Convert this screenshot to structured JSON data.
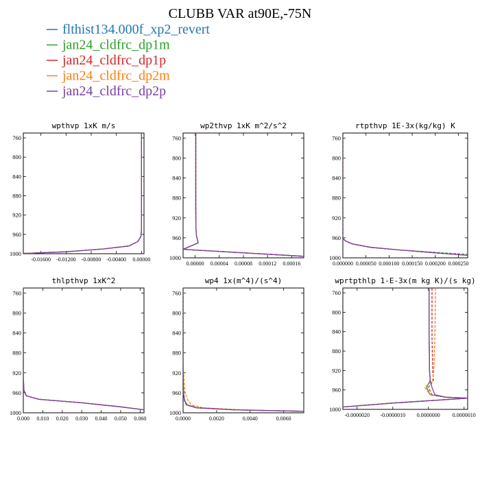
{
  "figure": {
    "title": "CLUBB VAR at90E,-75N"
  },
  "legend": [
    {
      "label": "flthist134.000f_xp2_revert",
      "color": "#1f77b4",
      "dash": "solid"
    },
    {
      "label": "jan24_cldfrc_dp1m",
      "color": "#2ca02c",
      "dash": "dash"
    },
    {
      "label": "jan24_cldfrc_dp1p",
      "color": "#d62728",
      "dash": "dash"
    },
    {
      "label": "jan24_cldfrc_dp2m",
      "color": "#ff7f0e",
      "dash": "dash"
    },
    {
      "label": "jan24_cldfrc_dp2p",
      "color": "#7b3fa0",
      "dash": "solid"
    }
  ],
  "chart_data": [
    {
      "type": "line",
      "title": "wpthvp  1xK m/s",
      "xlim": [
        -0.0188,
        0.0004
      ],
      "ylim": [
        1000,
        750
      ],
      "xticks": [
        -0.016,
        -0.012,
        -0.008,
        -0.004,
        0.0
      ],
      "xtick_labels": [
        "-0.01600",
        "-0.01200",
        "-0.00800",
        "-0.00400",
        "0.00000"
      ],
      "yticks": [
        760,
        800,
        840,
        880,
        920,
        960,
        1000
      ],
      "series": [
        {
          "name": "flthist134.000f_xp2_revert",
          "x": [
            0.0,
            0.0,
            0.0,
            0.0,
            -0.0001,
            -0.0006,
            -0.002,
            -0.006,
            -0.012,
            -0.0188
          ],
          "y": [
            750,
            850,
            900,
            950,
            965,
            975,
            984,
            990,
            996,
            999.5
          ]
        },
        {
          "name": "jan24_cldfrc_dp1m",
          "x": [
            0.0,
            0.0,
            0.0,
            0.0,
            -0.0001,
            -0.0006,
            -0.002,
            -0.006,
            -0.012,
            -0.0188
          ],
          "y": [
            750,
            850,
            900,
            950,
            965,
            975,
            984,
            990,
            996,
            999.5
          ]
        },
        {
          "name": "jan24_cldfrc_dp1p",
          "x": [
            0.0,
            0.0,
            0.0,
            0.0,
            -0.0001,
            -0.0006,
            -0.002,
            -0.006,
            -0.012,
            -0.0188
          ],
          "y": [
            750,
            850,
            900,
            950,
            965,
            975,
            984,
            990,
            996,
            999.5
          ]
        },
        {
          "name": "jan24_cldfrc_dp2m",
          "x": [
            0.0,
            0.0,
            0.0,
            0.0,
            -0.0001,
            -0.0006,
            -0.002,
            -0.006,
            -0.012,
            -0.0188
          ],
          "y": [
            750,
            850,
            900,
            950,
            965,
            975,
            984,
            990,
            996,
            999.5
          ]
        },
        {
          "name": "jan24_cldfrc_dp2p",
          "x": [
            0.0,
            0.0,
            0.0,
            0.0,
            -0.0001,
            -0.0006,
            -0.002,
            -0.006,
            -0.012,
            -0.0188
          ],
          "y": [
            750,
            850,
            900,
            950,
            965,
            975,
            984,
            990,
            996,
            999.5
          ]
        }
      ]
    },
    {
      "type": "line",
      "title": "wp2thvp   1xK m^2/s^2",
      "xlim": [
        -2e-05,
        0.00018
      ],
      "ylim": [
        1000,
        750
      ],
      "xticks": [
        0.0,
        4e-05,
        8e-05,
        0.00012,
        0.00016
      ],
      "xtick_labels": [
        "0.00000",
        "0.00004",
        "0.00008",
        "0.00012",
        "0.00016"
      ],
      "yticks": [
        760,
        800,
        840,
        880,
        920,
        960,
        1000
      ],
      "series": [
        {
          "name": "flthist134.000f_xp2_revert",
          "x": [
            1e-06,
            1e-06,
            1e-06,
            1.2e-06,
            2e-06,
            5e-06,
            -2e-05,
            8e-05,
            0.00018
          ],
          "y": [
            750,
            850,
            900,
            940,
            955,
            970,
            983,
            990,
            997
          ]
        },
        {
          "name": "jan24_cldfrc_dp1m",
          "x": [
            1e-06,
            1e-06,
            1e-06,
            1.2e-06,
            2e-06,
            5e-06,
            -2e-05,
            8e-05,
            0.00018
          ],
          "y": [
            750,
            850,
            900,
            940,
            955,
            970,
            983,
            990,
            997
          ]
        },
        {
          "name": "jan24_cldfrc_dp1p",
          "x": [
            1e-06,
            1e-06,
            1e-06,
            1.2e-06,
            2e-06,
            5e-06,
            -2e-05,
            8e-05,
            0.00018
          ],
          "y": [
            750,
            850,
            900,
            940,
            955,
            970,
            983,
            990,
            997
          ]
        },
        {
          "name": "jan24_cldfrc_dp2m",
          "x": [
            1e-06,
            1e-06,
            1e-06,
            1.2e-06,
            2e-06,
            5e-06,
            -2e-05,
            8e-05,
            0.00018
          ],
          "y": [
            750,
            850,
            900,
            940,
            955,
            970,
            983,
            990,
            997
          ]
        },
        {
          "name": "jan24_cldfrc_dp2p",
          "x": [
            1e-06,
            1e-06,
            1e-06,
            1.2e-06,
            2e-06,
            5e-06,
            -2e-05,
            8e-05,
            0.00018
          ],
          "y": [
            750,
            850,
            900,
            940,
            955,
            970,
            983,
            990,
            997
          ]
        }
      ]
    },
    {
      "type": "line",
      "title": "rtpthvp  1E-3x(kg/kg) K",
      "xlim": [
        0.0,
        0.00027
      ],
      "ylim": [
        1000,
        750
      ],
      "xticks": [
        0.0,
        5e-05,
        0.0001,
        0.00015,
        0.0002,
        0.00025
      ],
      "xtick_labels": [
        "0.000000",
        "0.000050",
        "0.000100",
        "0.000150",
        "0.000200",
        "0.000250"
      ],
      "yticks": [
        760,
        800,
        840,
        880,
        920,
        960,
        1000
      ],
      "series": [
        {
          "name": "flthist134.000f_xp2_revert",
          "x": [
            0.0,
            0.0,
            0.0,
            0.0,
            5e-06,
            2e-05,
            6e-05,
            0.00012,
            0.0002,
            0.00027
          ],
          "y": [
            750,
            850,
            900,
            960,
            966,
            972,
            979,
            984,
            990,
            995
          ]
        },
        {
          "name": "jan24_cldfrc_dp1m",
          "x": [
            0.0,
            0.0,
            0.0,
            0.0,
            5e-06,
            2e-05,
            6e-05,
            0.00012,
            0.0002,
            0.00027
          ],
          "y": [
            750,
            850,
            900,
            960,
            966,
            972,
            979,
            984,
            989,
            993
          ]
        },
        {
          "name": "jan24_cldfrc_dp1p",
          "x": [
            0.0,
            0.0,
            0.0,
            0.0,
            5e-06,
            2e-05,
            6e-05,
            0.00012,
            0.0002,
            0.00027
          ],
          "y": [
            750,
            850,
            900,
            960,
            966,
            972,
            979,
            984,
            990,
            995
          ]
        },
        {
          "name": "jan24_cldfrc_dp2m",
          "x": [
            0.0,
            0.0,
            0.0,
            0.0,
            5e-06,
            2e-05,
            6e-05,
            0.00012,
            0.0002,
            0.00027
          ],
          "y": [
            750,
            850,
            900,
            960,
            966,
            972,
            979,
            984,
            990,
            995
          ]
        },
        {
          "name": "jan24_cldfrc_dp2p",
          "x": [
            0.0,
            0.0,
            0.0,
            0.0,
            5e-06,
            2e-05,
            6e-05,
            0.00012,
            0.0002,
            0.00027
          ],
          "y": [
            750,
            850,
            900,
            960,
            966,
            972,
            979,
            984,
            990,
            995
          ]
        }
      ]
    },
    {
      "type": "line",
      "title": "thlpthvp   1xK^2",
      "xlim": [
        0.0,
        0.062
      ],
      "ylim": [
        1000,
        750
      ],
      "xticks": [
        0.0,
        0.01,
        0.02,
        0.03,
        0.04,
        0.05,
        0.06
      ],
      "xtick_labels": [
        "0.000",
        "0.010",
        "0.020",
        "0.030",
        "0.040",
        "0.050",
        "0.060"
      ],
      "yticks": [
        760,
        800,
        840,
        880,
        920,
        960,
        1000
      ],
      "series": [
        {
          "name": "flthist134.000f_xp2_revert",
          "x": [
            0.0,
            0.0,
            0.0,
            0.0003,
            0.0015,
            0.008,
            0.03,
            0.05,
            0.062
          ],
          "y": [
            750,
            850,
            930,
            955,
            966,
            973,
            980,
            988,
            994
          ]
        },
        {
          "name": "jan24_cldfrc_dp1m",
          "x": [
            0.0,
            0.0,
            0.0,
            0.0003,
            0.0015,
            0.008,
            0.03,
            0.05,
            0.062
          ],
          "y": [
            750,
            850,
            930,
            955,
            966,
            973,
            980,
            988,
            994
          ]
        },
        {
          "name": "jan24_cldfrc_dp1p",
          "x": [
            0.0,
            0.0,
            0.0,
            0.0003,
            0.0015,
            0.008,
            0.03,
            0.05,
            0.062
          ],
          "y": [
            750,
            850,
            930,
            955,
            966,
            973,
            980,
            988,
            994
          ]
        },
        {
          "name": "jan24_cldfrc_dp2m",
          "x": [
            0.0,
            0.0,
            0.0,
            0.0003,
            0.0015,
            0.008,
            0.03,
            0.05,
            0.062
          ],
          "y": [
            750,
            850,
            930,
            955,
            966,
            973,
            980,
            988,
            994
          ]
        },
        {
          "name": "jan24_cldfrc_dp2p",
          "x": [
            0.0,
            0.0,
            0.0,
            0.0003,
            0.0015,
            0.008,
            0.03,
            0.05,
            0.062
          ],
          "y": [
            750,
            850,
            930,
            955,
            966,
            973,
            980,
            988,
            994
          ]
        }
      ]
    },
    {
      "type": "line",
      "title": "wp4   1x(m^4)/(s^4)",
      "xlim": [
        0.0,
        0.0072
      ],
      "ylim": [
        1000,
        750
      ],
      "xticks": [
        0.0,
        0.002,
        0.004,
        0.006
      ],
      "xtick_labels": [
        "0.0000",
        "0.0020",
        "0.0040",
        "0.0060"
      ],
      "yticks": [
        760,
        800,
        840,
        880,
        920,
        960,
        1000
      ],
      "series": [
        {
          "name": "flthist134.000f_xp2_revert",
          "x": [
            0.0,
            0.0,
            2e-05,
            8e-05,
            0.0002,
            0.0008,
            0.003,
            0.0072
          ],
          "y": [
            750,
            900,
            960,
            975,
            984,
            990,
            994,
            997
          ]
        },
        {
          "name": "jan24_cldfrc_dp1m",
          "x": [
            0.0,
            0.0,
            3e-05,
            0.0001,
            0.00025,
            0.0009,
            0.003,
            0.0072
          ],
          "y": [
            750,
            900,
            960,
            975,
            984,
            990,
            994,
            997
          ]
        },
        {
          "name": "jan24_cldfrc_dp1p",
          "x": [
            0.0,
            0.0,
            2e-05,
            8e-05,
            0.0002,
            0.0008,
            0.003,
            0.0072
          ],
          "y": [
            750,
            900,
            960,
            975,
            984,
            990,
            994,
            997
          ]
        },
        {
          "name": "jan24_cldfrc_dp2m",
          "x": [
            0.0,
            0.0,
            0.0001,
            0.0003,
            0.0005,
            0.0012,
            0.0035,
            0.0072
          ],
          "y": [
            750,
            900,
            960,
            975,
            984,
            990,
            994,
            997
          ]
        },
        {
          "name": "jan24_cldfrc_dp2p",
          "x": [
            0.0,
            0.0,
            2e-05,
            8e-05,
            0.0002,
            0.0008,
            0.003,
            0.0072
          ],
          "y": [
            750,
            900,
            960,
            975,
            984,
            990,
            994,
            997
          ]
        }
      ]
    },
    {
      "type": "line",
      "title": "wprtpthlp   1-E-3x(m kg K)/(s kg)",
      "xlim": [
        -2.4e-06,
        1.1e-06
      ],
      "ylim": [
        1000,
        750
      ],
      "xticks": [
        -2e-06,
        -1e-06,
        0.0,
        1e-06
      ],
      "xtick_labels": [
        "-0.0000020",
        "-0.0000010",
        "0.0000000",
        "0.0000010"
      ],
      "yticks": [
        760,
        800,
        840,
        880,
        920,
        960,
        1000
      ],
      "series": [
        {
          "name": "flthist134.000f_xp2_revert",
          "x": [
            2e-08,
            2e-08,
            3e-08,
            5e-08,
            -5e-08,
            5e-08,
            5e-07,
            1.1e-06,
            -1e-06,
            -2.4e-06
          ],
          "y": [
            750,
            850,
            920,
            940,
            955,
            970,
            975,
            977,
            987,
            995
          ]
        },
        {
          "name": "jan24_cldfrc_dp1m",
          "x": [
            2e-08,
            2e-08,
            3e-08,
            5e-08,
            -5e-08,
            5e-08,
            5e-07,
            1.1e-06,
            -1e-06,
            -2.4e-06
          ],
          "y": [
            750,
            850,
            920,
            940,
            955,
            970,
            975,
            977,
            987,
            995
          ]
        },
        {
          "name": "jan24_cldfrc_dp1p",
          "x": [
            1e-07,
            1e-07,
            1.2e-07,
            1.4e-07,
            0.0,
            1e-07,
            5e-07,
            1.1e-06,
            -1e-06,
            -2.4e-06
          ],
          "y": [
            750,
            850,
            920,
            940,
            955,
            970,
            975,
            977,
            987,
            995
          ]
        },
        {
          "name": "jan24_cldfrc_dp2m",
          "x": [
            2e-07,
            1.8e-07,
            1.5e-07,
            1.2e-07,
            -1e-07,
            5e-08,
            5e-07,
            1.1e-06,
            -1e-06,
            -2.4e-06
          ],
          "y": [
            750,
            850,
            920,
            940,
            955,
            970,
            975,
            977,
            987,
            995
          ]
        },
        {
          "name": "jan24_cldfrc_dp2p",
          "x": [
            2e-08,
            2e-08,
            3e-08,
            5e-08,
            1e-07,
            1.8e-07,
            5e-07,
            1.1e-06,
            -1e-06,
            -2.4e-06
          ],
          "y": [
            750,
            850,
            920,
            940,
            955,
            970,
            975,
            977,
            987,
            995
          ]
        }
      ]
    }
  ]
}
